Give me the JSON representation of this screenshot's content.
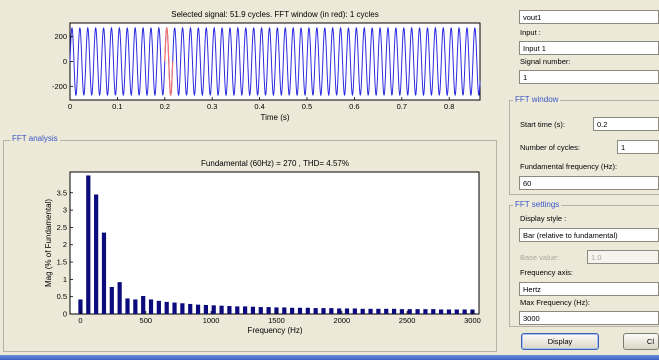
{
  "signal_plot": {
    "title": "Selected signal: 51.9 cycles. FFT window (in red): 1 cycles",
    "xlabel": "Time (s)",
    "x_ticks": [
      0,
      0.1,
      0.2,
      0.3,
      0.4,
      0.5,
      0.6,
      0.7,
      0.8
    ],
    "y_ticks": [
      200,
      0,
      -200
    ],
    "xlim": [
      0,
      0.865
    ],
    "ylim": [
      -310,
      310
    ],
    "frequency_hz": 60,
    "amplitude": 270,
    "fft_window": {
      "start": 0.2,
      "cycles": 1
    },
    "colors": {
      "signal": "#2a2ae0",
      "window": "#f07070"
    }
  },
  "fft_panel": {
    "title": "FFT analysis"
  },
  "chart_data": {
    "type": "bar",
    "title": "Fundamental (60Hz) = 270 , THD= 4.57%",
    "xlabel": "Frequency (Hz)",
    "ylabel": "Mag (% of Fundamental)",
    "x_ticks": [
      0,
      500,
      1000,
      1500,
      2000,
      2500,
      3000
    ],
    "y_ticks": [
      0,
      0.5,
      1,
      1.5,
      2,
      2.5,
      3,
      3.5
    ],
    "xlim": [
      -80,
      3050
    ],
    "ylim": [
      0,
      4.1
    ],
    "bar_color": "#0b0b7c",
    "x": [
      0,
      60,
      120,
      180,
      240,
      300,
      360,
      420,
      480,
      540,
      600,
      660,
      720,
      780,
      840,
      900,
      960,
      1020,
      1080,
      1140,
      1200,
      1260,
      1320,
      1380,
      1440,
      1500,
      1560,
      1620,
      1680,
      1740,
      1800,
      1860,
      1920,
      1980,
      2040,
      2100,
      2160,
      2220,
      2280,
      2340,
      2400,
      2460,
      2520,
      2580,
      2640,
      2700,
      2760,
      2820,
      2880,
      2940,
      3000
    ],
    "values": [
      0.42,
      4.0,
      3.45,
      2.35,
      0.78,
      0.92,
      0.45,
      0.42,
      0.52,
      0.42,
      0.38,
      0.35,
      0.33,
      0.31,
      0.29,
      0.27,
      0.26,
      0.25,
      0.24,
      0.23,
      0.22,
      0.22,
      0.21,
      0.2,
      0.2,
      0.19,
      0.19,
      0.18,
      0.18,
      0.18,
      0.17,
      0.17,
      0.17,
      0.16,
      0.16,
      0.16,
      0.15,
      0.15,
      0.15,
      0.15,
      0.15,
      0.14,
      0.14,
      0.14,
      0.14,
      0.14,
      0.13,
      0.13,
      0.13,
      0.13,
      0.13
    ]
  },
  "right_panel": {
    "signal_field": "vout1",
    "input_label": "Input :",
    "input_field": "Input 1",
    "signal_number_label": "Signal number:",
    "signal_number_field": "1"
  },
  "fft_window": {
    "title": "FFT window",
    "start_time_label": "Start time (s):",
    "start_time_value": "0.2",
    "cycles_label": "Number of cycles:",
    "cycles_value": "1",
    "fundamental_label": "Fundamental frequency (Hz):",
    "fundamental_value": "60"
  },
  "fft_settings": {
    "title": "FFT settings",
    "display_style_label": "Display style :",
    "display_style_value": "Bar (relative to fundamental)",
    "base_value_label": "Base value:",
    "base_value_value": "1.0",
    "freq_axis_label": "Frequency axis:",
    "freq_axis_value": "Hertz",
    "max_freq_label": "Max Frequency (Hz):",
    "max_freq_value": "3000"
  },
  "buttons": {
    "display": "Display",
    "close": "Cl"
  }
}
